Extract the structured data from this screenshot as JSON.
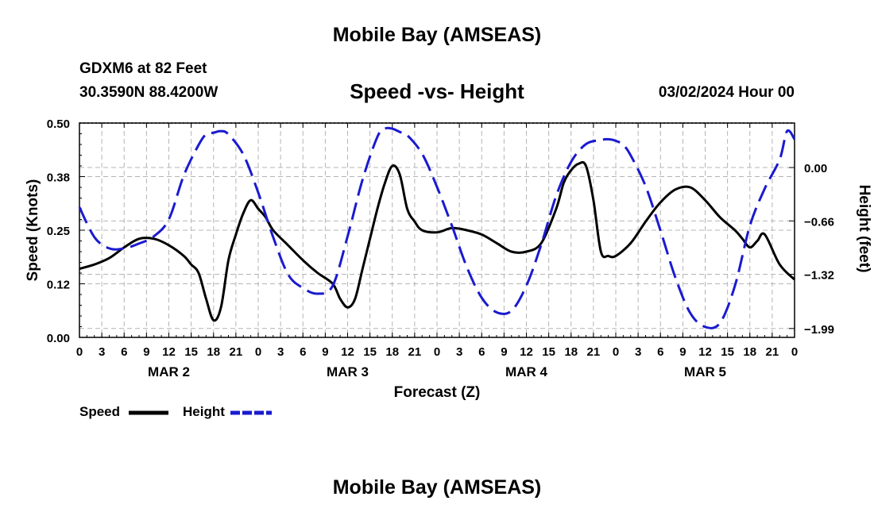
{
  "header": {
    "title": "Mobile Bay (AMSEAS)",
    "station": "GDXM6 at 82 Feet",
    "coordinates": "30.3590N  88.4200W",
    "chart_title": "Speed -vs- Height",
    "run_time": "03/02/2024 Hour 00",
    "bottom_title": "Mobile Bay (AMSEAS)"
  },
  "legend": {
    "speed_label": "Speed",
    "height_label": "Height"
  },
  "colors": {
    "speed": "#000000",
    "height": "#1a1ad0",
    "grid": "#b4b4b4"
  },
  "chart_data": {
    "type": "line",
    "title": "Speed -vs- Height",
    "xlabel": "Forecast (Z)",
    "ylabel": "Speed (Knots)",
    "y2label": "Height (feet)",
    "xlim": [
      0,
      96
    ],
    "ylim": [
      0,
      0.5
    ],
    "y2lim": [
      -2.1,
      0.55
    ],
    "x_tick_labels": [
      "0",
      "3",
      "6",
      "9",
      "12",
      "15",
      "18",
      "21",
      "0",
      "3",
      "6",
      "9",
      "12",
      "15",
      "18",
      "21",
      "0",
      "3",
      "6",
      "9",
      "12",
      "15",
      "18",
      "21",
      "0",
      "3",
      "6",
      "9",
      "12",
      "15",
      "18",
      "21",
      "0"
    ],
    "day_labels": [
      {
        "label": "MAR 2",
        "hour": 12
      },
      {
        "label": "MAR 3",
        "hour": 36
      },
      {
        "label": "MAR 4",
        "hour": 60
      },
      {
        "label": "MAR 5",
        "hour": 84
      }
    ],
    "y_ticks": [
      "0.00",
      "0.12",
      "0.25",
      "0.38",
      "0.50"
    ],
    "y_tick_values": [
      0,
      0.125,
      0.25,
      0.375,
      0.5
    ],
    "y2_ticks": [
      "0.00",
      "−0.66",
      "−1.32",
      "−1.99"
    ],
    "y2_tick_values": [
      0,
      -0.66,
      -1.32,
      -1.99
    ],
    "series": [
      {
        "name": "Speed",
        "axis": "left",
        "x": [
          0,
          2,
          4,
          6,
          8,
          10,
          12,
          14,
          15,
          16,
          17,
          18,
          19,
          20,
          21,
          22,
          23,
          24,
          25,
          26,
          28,
          30,
          32,
          34,
          35,
          36,
          37,
          38,
          39,
          40,
          41,
          42,
          43,
          44,
          45,
          46,
          48,
          50,
          52,
          54,
          56,
          58,
          60,
          62,
          64,
          65,
          66,
          67,
          68,
          69,
          70,
          71,
          72,
          74,
          76,
          78,
          80,
          82,
          84,
          86,
          88,
          89,
          90,
          91,
          92,
          94,
          96
        ],
        "values": [
          0.16,
          0.17,
          0.185,
          0.21,
          0.23,
          0.23,
          0.215,
          0.19,
          0.17,
          0.15,
          0.09,
          0.04,
          0.07,
          0.18,
          0.24,
          0.29,
          0.32,
          0.3,
          0.28,
          0.25,
          0.215,
          0.18,
          0.15,
          0.125,
          0.09,
          0.07,
          0.09,
          0.16,
          0.23,
          0.3,
          0.36,
          0.4,
          0.38,
          0.3,
          0.27,
          0.25,
          0.245,
          0.255,
          0.25,
          0.24,
          0.22,
          0.2,
          0.2,
          0.22,
          0.3,
          0.36,
          0.39,
          0.405,
          0.4,
          0.32,
          0.2,
          0.19,
          0.19,
          0.22,
          0.27,
          0.315,
          0.345,
          0.35,
          0.32,
          0.28,
          0.25,
          0.23,
          0.21,
          0.225,
          0.24,
          0.17,
          0.135
        ]
      },
      {
        "name": "Height",
        "axis": "right",
        "x": [
          0,
          2,
          4,
          6,
          8,
          10,
          12,
          14,
          16,
          17,
          18,
          19,
          20,
          22,
          24,
          26,
          28,
          30,
          32,
          34,
          36,
          38,
          40,
          41,
          42,
          43,
          44,
          46,
          48,
          50,
          52,
          54,
          56,
          58,
          60,
          62,
          64,
          66,
          68,
          70,
          71,
          72,
          73,
          74,
          76,
          78,
          80,
          82,
          84,
          86,
          88,
          90,
          92,
          94,
          95,
          96
        ],
        "values": [
          -0.49,
          -0.86,
          -1.0,
          -1.0,
          -0.94,
          -0.85,
          -0.64,
          -0.1,
          0.28,
          0.41,
          0.43,
          0.45,
          0.41,
          0.16,
          -0.31,
          -0.86,
          -1.32,
          -1.49,
          -1.56,
          -1.46,
          -0.85,
          -0.15,
          0.38,
          0.48,
          0.48,
          0.44,
          0.4,
          0.17,
          -0.24,
          -0.72,
          -1.23,
          -1.61,
          -1.79,
          -1.77,
          -1.46,
          -0.95,
          -0.35,
          0.07,
          0.29,
          0.34,
          0.35,
          0.33,
          0.28,
          0.15,
          -0.23,
          -0.78,
          -1.36,
          -1.8,
          -1.97,
          -1.92,
          -1.46,
          -0.72,
          -0.26,
          0.1,
          0.45,
          0.35
        ]
      }
    ]
  }
}
